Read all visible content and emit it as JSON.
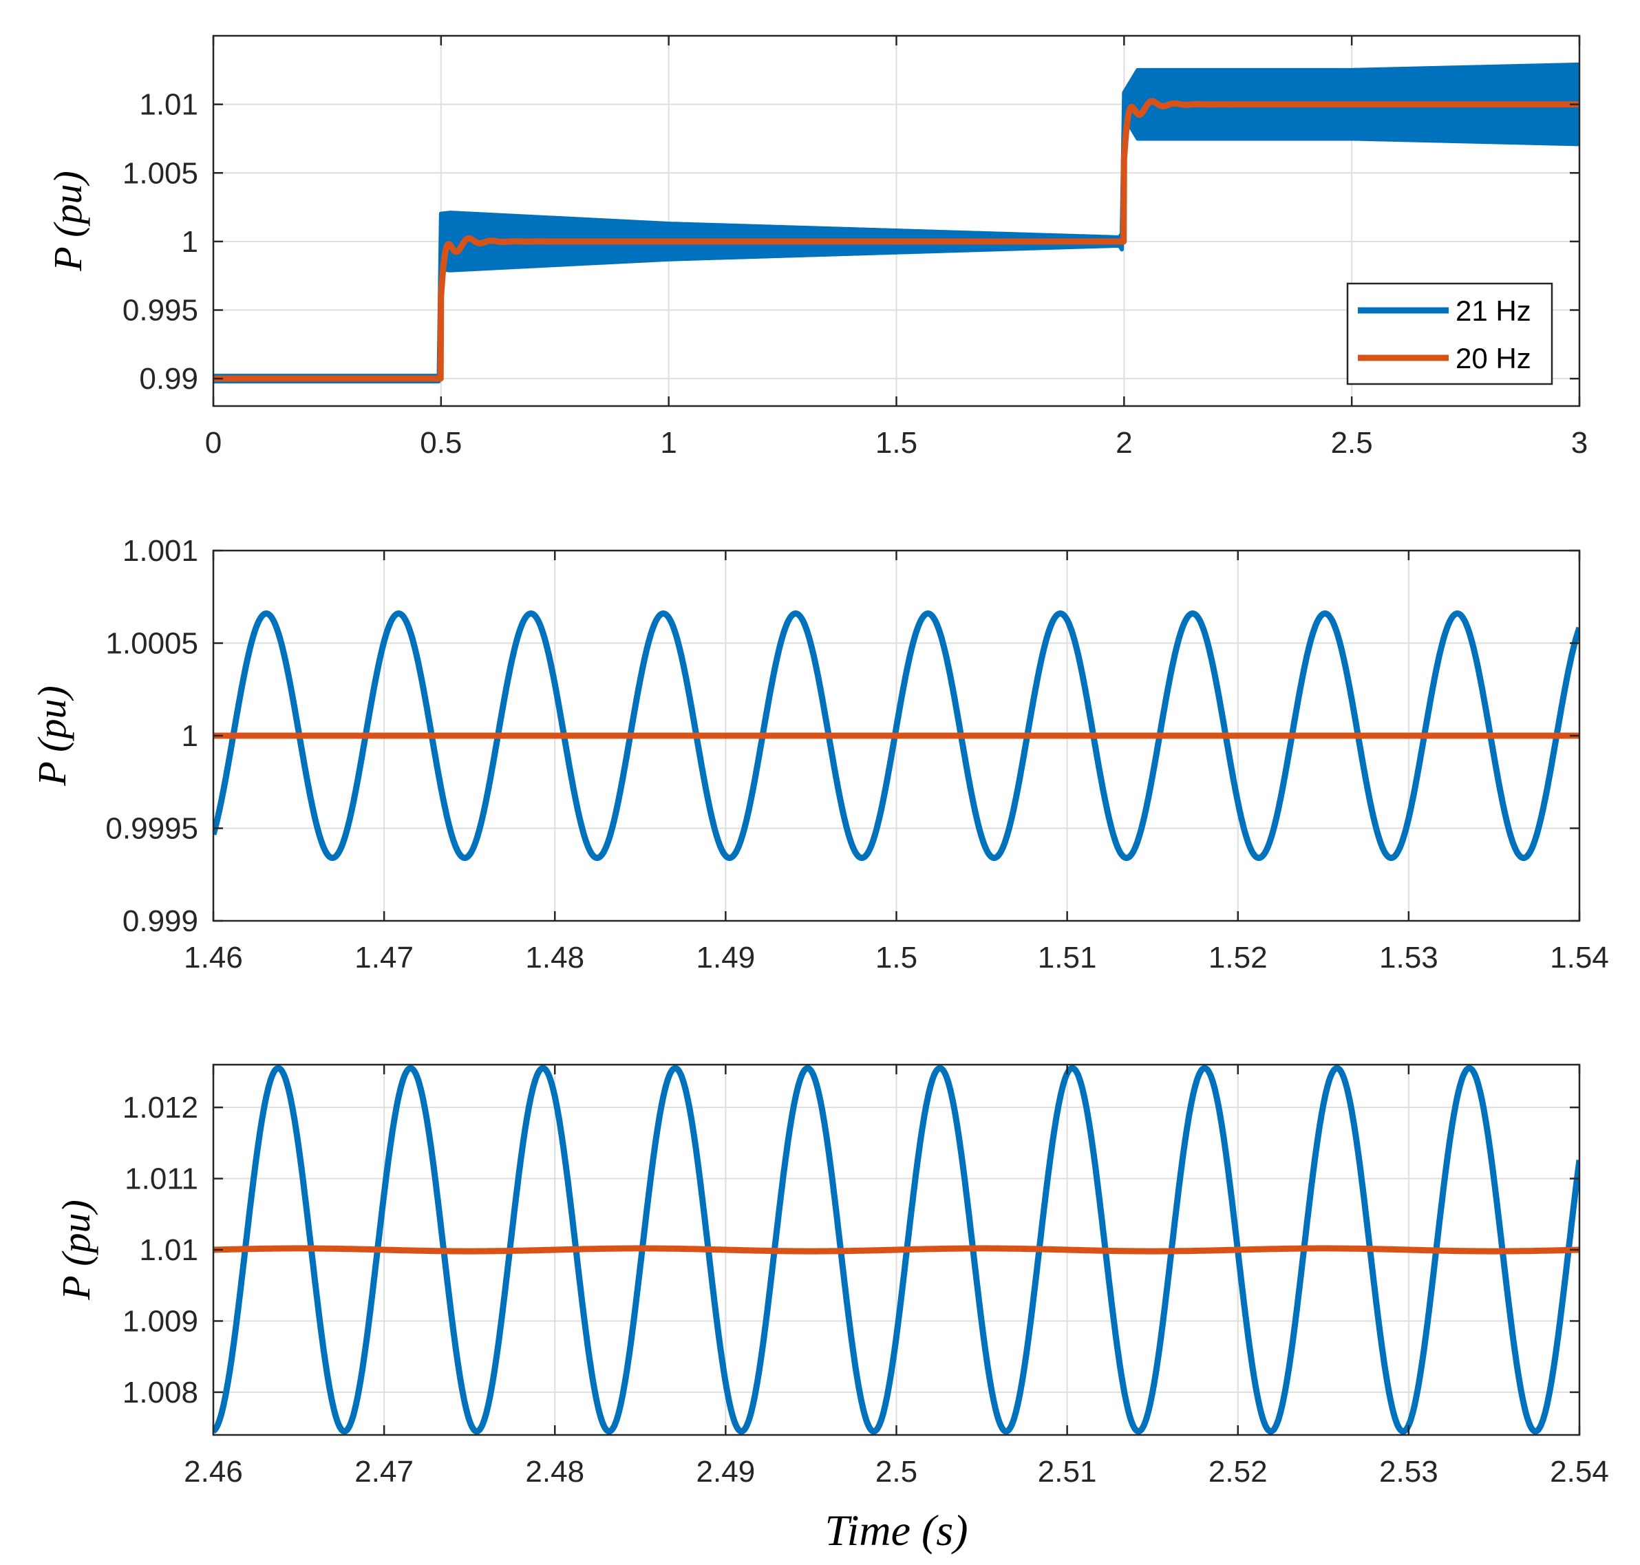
{
  "chart_data": [
    {
      "type": "line",
      "ylabel": "P (pu)",
      "xlabel": "",
      "xlim": [
        0,
        3
      ],
      "ylim": [
        0.988,
        1.015
      ],
      "xticks": [
        "0",
        "0.5",
        "1",
        "1.5",
        "2",
        "2.5",
        "3"
      ],
      "yticks": [
        "0.99",
        "0.995",
        "1",
        "1.005",
        "1.01"
      ],
      "grid": true,
      "legend": {
        "position": "bottom-right",
        "entries": [
          "21 Hz",
          "20 Hz"
        ]
      },
      "series": [
        {
          "name": "21 Hz",
          "color": "#0072BD",
          "description": "Dense oscillation envelope; power steps 0.99 -> 1.00 at t=0.5 s and 1.00 -> 1.01 at t=2 s",
          "steps": [
            [
              0,
              0.99
            ],
            [
              0.5,
              1.0
            ],
            [
              2.0,
              1.01
            ]
          ],
          "envelope_half_width": [
            [
              0,
              0.0001
            ],
            [
              0.52,
              0.0021
            ],
            [
              1.0,
              0.0013
            ],
            [
              1.99,
              0.0003
            ],
            [
              2.03,
              0.0025
            ],
            [
              2.5,
              0.0025
            ],
            [
              3.0,
              0.0029
            ]
          ]
        },
        {
          "name": "20 Hz",
          "color": "#D95319",
          "description": "Steps 0.99 -> 1.00 at t=0.5 s and 1.00 -> 1.01 at t=2 s, small transient decaying quickly",
          "steps": [
            [
              0,
              0.99
            ],
            [
              0.5,
              1.0
            ],
            [
              2.0,
              1.01
            ]
          ],
          "transient_amplitude": 0.0015
        }
      ]
    },
    {
      "type": "line",
      "ylabel": "P (pu)",
      "xlabel": "",
      "xlim": [
        1.46,
        1.54
      ],
      "ylim": [
        0.999,
        1.001
      ],
      "xticks": [
        "1.46",
        "1.47",
        "1.48",
        "1.49",
        "1.5",
        "1.51",
        "1.52",
        "1.53",
        "1.54"
      ],
      "yticks": [
        "0.999",
        "0.9995",
        "1",
        "1.0005",
        "1.001"
      ],
      "grid": true,
      "series": [
        {
          "name": "21 Hz",
          "color": "#0072BD",
          "mean": 1.0,
          "amplitude": 0.00066,
          "period": 0.00775,
          "first_peak_x": 1.4631,
          "start_value": 0.99948
        },
        {
          "name": "20 Hz",
          "color": "#D95319",
          "mean": 1.0,
          "amplitude": 0.0
        }
      ]
    },
    {
      "type": "line",
      "ylabel": "P (pu)",
      "xlabel": "Time (s)",
      "xlim": [
        2.46,
        2.54
      ],
      "ylim": [
        1.0074,
        1.0126
      ],
      "xticks": [
        "2.46",
        "2.47",
        "2.48",
        "2.49",
        "2.5",
        "2.51",
        "2.52",
        "2.53",
        "2.54"
      ],
      "yticks": [
        "1.008",
        "1.009",
        "1.01",
        "1.011",
        "1.012"
      ],
      "grid": true,
      "series": [
        {
          "name": "21 Hz",
          "color": "#0072BD",
          "mean": 1.01,
          "amplitude": 0.00255,
          "period": 0.00775,
          "first_peak_x": 2.4638,
          "start_value": 1.00755
        },
        {
          "name": "20 Hz",
          "color": "#D95319",
          "mean": 1.01,
          "amplitude": 2e-05
        }
      ]
    }
  ]
}
